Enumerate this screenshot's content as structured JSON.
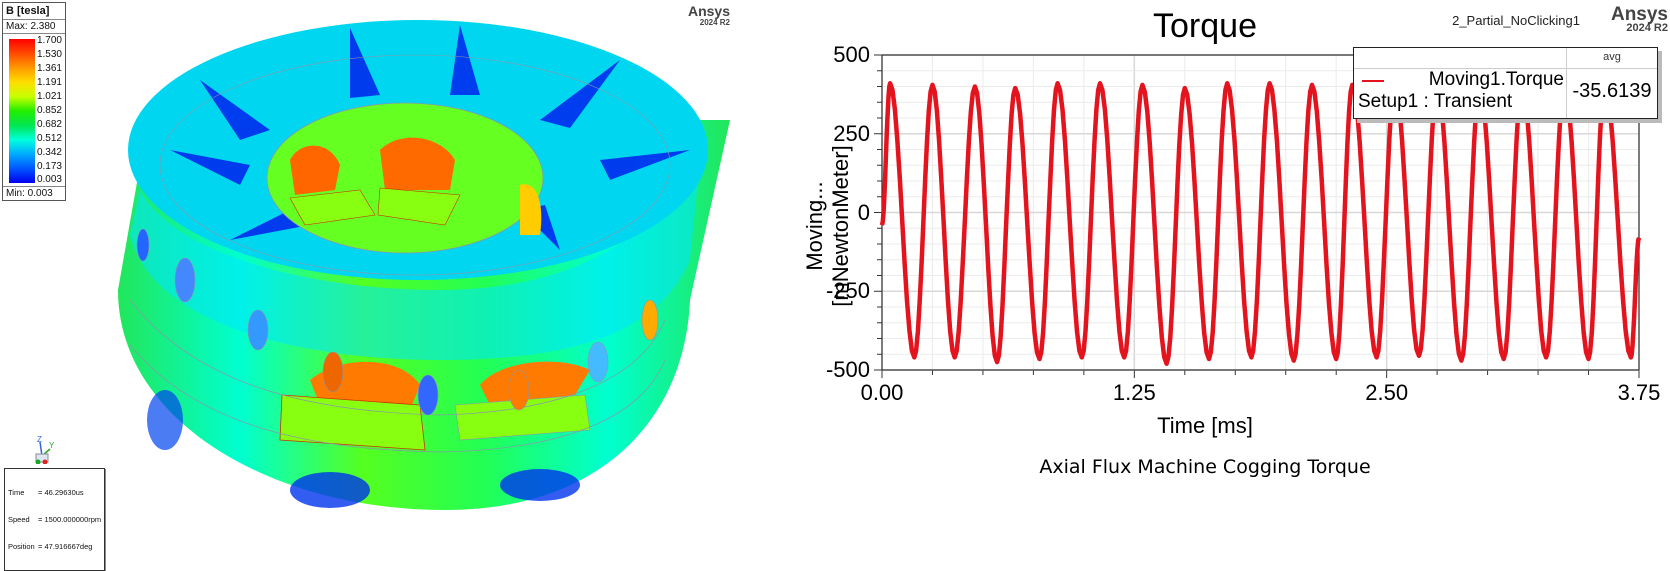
{
  "field_plot": {
    "legend": {
      "title": "B [tesla]",
      "max_label": "Max: 2.380",
      "min_label": "Min: 0.003",
      "ticks": [
        "1.700",
        "1.530",
        "1.361",
        "1.191",
        "1.021",
        "0.852",
        "0.682",
        "0.512",
        "0.342",
        "0.173",
        "0.003"
      ],
      "colors": [
        "#ff0000",
        "#ff4a00",
        "#ff9900",
        "#ffdd00",
        "#c8ff00",
        "#22ee00",
        "#00e650",
        "#00ffdd",
        "#00aaff",
        "#0055ff",
        "#0000ee"
      ]
    },
    "logo": {
      "name": "Ansys",
      "version": "2024 R2"
    },
    "triad": {
      "z": "Z",
      "y": "Y",
      "x": "X"
    },
    "status": {
      "time_key": "Time",
      "time_val": "= 46.29630us",
      "speed_key": "Speed",
      "speed_val": "= 1500.000000rpm",
      "position_key": "Position",
      "position_val": "= 47.916667deg"
    }
  },
  "chart_panel": {
    "design_name": "2_Partial_NoClicking1",
    "logo": {
      "name": "Ansys",
      "version": "2024 R2"
    },
    "legend": {
      "header_avg": "avg",
      "series_name": "Moving1.Torque",
      "series_setup": "Setup1 : Transient",
      "avg_value": "-35.6139",
      "color": "#e3141e"
    },
    "caption": "Axial Flux Machine Cogging Torque"
  },
  "chart_data": {
    "type": "line",
    "title": "Torque",
    "xlabel": "Time [ms]",
    "ylabel": "Moving...[mNewtonMeter]",
    "xlim": [
      0,
      3.75
    ],
    "ylim": [
      -500,
      500
    ],
    "xticks": [
      "0.00",
      "1.25",
      "2.50",
      "3.75"
    ],
    "yticks": [
      "500",
      "250",
      "0",
      "-250",
      "-500"
    ],
    "grid": true,
    "legend_position": "top-right",
    "series": [
      {
        "name": "Moving1.Torque (Setup1 : Transient)",
        "color": "#e3141e",
        "period_ms": 0.2083,
        "cycles": 18,
        "start_value": -40,
        "peaks_ms": [
          0.04,
          0.25,
          0.46,
          0.66,
          0.87,
          1.08,
          1.29,
          1.5,
          1.71,
          1.92,
          2.13,
          2.33,
          2.54,
          2.75,
          2.96,
          3.17,
          3.38,
          3.58
        ],
        "peak_values": [
          410,
          405,
          400,
          395,
          410,
          410,
          405,
          395,
          410,
          410,
          405,
          405,
          410,
          405,
          400,
          405,
          405,
          410
        ],
        "troughs_ms": [
          0.16,
          0.36,
          0.57,
          0.78,
          0.99,
          1.2,
          1.41,
          1.62,
          1.83,
          2.04,
          2.25,
          2.45,
          2.66,
          2.87,
          3.08,
          3.29,
          3.5,
          3.71
        ],
        "trough_values": [
          -460,
          -460,
          -475,
          -465,
          -460,
          -460,
          -480,
          -465,
          -460,
          -470,
          -465,
          -460,
          -455,
          -470,
          -465,
          -460,
          -465,
          -460
        ],
        "end_value": -80,
        "average": -35.6139
      }
    ]
  }
}
